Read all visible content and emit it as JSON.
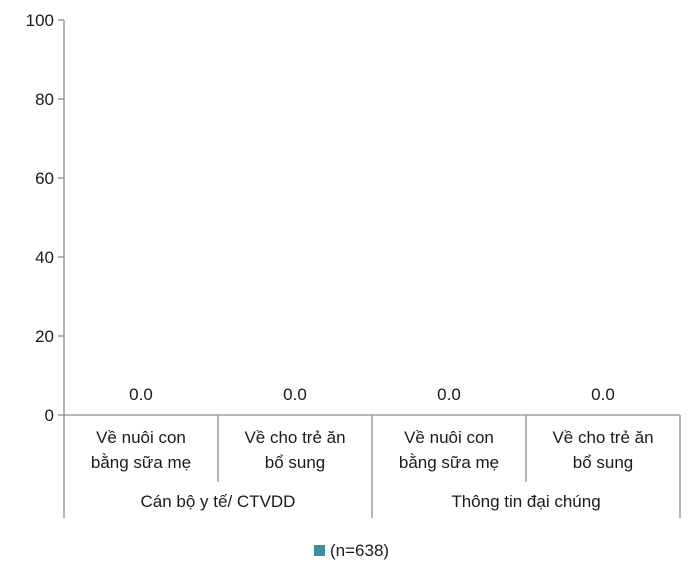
{
  "chart_data": {
    "type": "bar",
    "title": "",
    "ylim": [
      0,
      100
    ],
    "yticks": [
      0,
      20,
      40,
      60,
      80,
      100
    ],
    "groups": [
      {
        "label": "Cán bộ y tế/ CTVDD",
        "categories": [
          [
            "Về nuôi con",
            "bằng sữa mẹ"
          ],
          [
            "Về cho trẻ ăn",
            "bổ sung"
          ]
        ]
      },
      {
        "label": "Thông tin đại chúng",
        "categories": [
          [
            "Về nuôi con",
            "bằng sữa mẹ"
          ],
          [
            "Về cho trẻ ăn",
            "bổ sung"
          ]
        ]
      }
    ],
    "series": [
      {
        "name": "(n=638)",
        "color": "#3a8fa0",
        "values": [
          0.0,
          0.0,
          0.0,
          0.0
        ],
        "labels": [
          "0.0",
          "0.0",
          "0.0",
          "0.0"
        ]
      }
    ],
    "legend_position": "bottom",
    "grid": false
  }
}
